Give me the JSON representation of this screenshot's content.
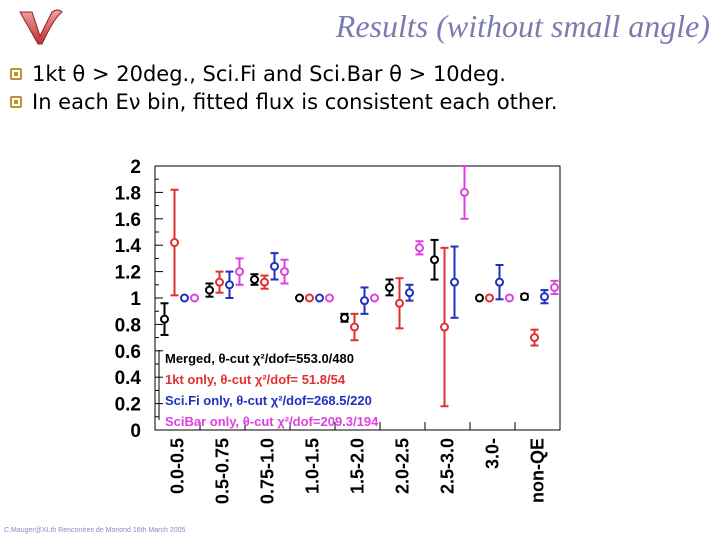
{
  "slide": {
    "title": "Results (without small angle)",
    "logo_icon": "nu-letter-icon",
    "bullet_icon": "square-bullet-icon",
    "bullets": [
      "1kt θ > 20deg., Sci.Fi and Sci.Bar θ > 10deg.",
      "In each Eν bin, fitted flux is consistent each other."
    ],
    "footer": "C.Mauger@XLth Rencontres de Moriond 16th March 2005"
  },
  "chart_data": {
    "type": "scatter",
    "title": "",
    "xlabel": "",
    "ylabel": "",
    "ylim": [
      0,
      2
    ],
    "grid": false,
    "legend_placement": "bottom-left",
    "categories": [
      "0.0-0.5",
      "0.5-0.75",
      "0.75-1.0",
      "1.0-1.5",
      "1.5-2.0",
      "2.0-2.5",
      "2.5-3.0",
      "3.0-",
      "non-QE"
    ],
    "yticks": [
      "2",
      "1.8",
      "1.6",
      "1.4",
      "1.2",
      "1",
      "0.8",
      "0.6",
      "0.4",
      "0.2",
      "0"
    ],
    "series": [
      {
        "name": "Merged, θ-cut χ²/dof=553.0/480",
        "color": "#000000",
        "values": [
          0.84,
          1.06,
          1.14,
          1.0,
          0.85,
          1.08,
          1.29,
          1.0,
          1.01
        ],
        "errors": [
          0.12,
          0.05,
          0.04,
          0.0,
          0.03,
          0.06,
          0.15,
          0.0,
          0.02
        ]
      },
      {
        "name": "1kt only, θ-cut χ²/dof= 51.8/54",
        "color": "#e03030",
        "values": [
          1.42,
          1.12,
          1.12,
          1.0,
          0.78,
          0.96,
          0.78,
          1.0,
          0.7
        ],
        "errors": [
          0.4,
          0.08,
          0.05,
          0.0,
          0.1,
          0.19,
          0.6,
          0.0,
          0.06
        ]
      },
      {
        "name": "Sci.Fi only, θ-cut χ²/dof=268.5/220",
        "color": "#2030c0",
        "values": [
          1.0,
          1.1,
          1.24,
          1.0,
          0.98,
          1.04,
          1.12,
          1.12,
          1.01
        ],
        "errors": [
          0.0,
          0.1,
          0.1,
          0.0,
          0.1,
          0.06,
          0.27,
          0.13,
          0.05
        ]
      },
      {
        "name": "SciBar only, θ-cut χ²/dof=209.3/194",
        "color": "#e040e0",
        "values": [
          1.0,
          1.2,
          1.2,
          1.0,
          1.0,
          1.38,
          1.8,
          1.0,
          1.08
        ],
        "errors": [
          0.0,
          0.1,
          0.09,
          0.0,
          0.0,
          0.05,
          0.2,
          0.0,
          0.05
        ]
      }
    ]
  }
}
